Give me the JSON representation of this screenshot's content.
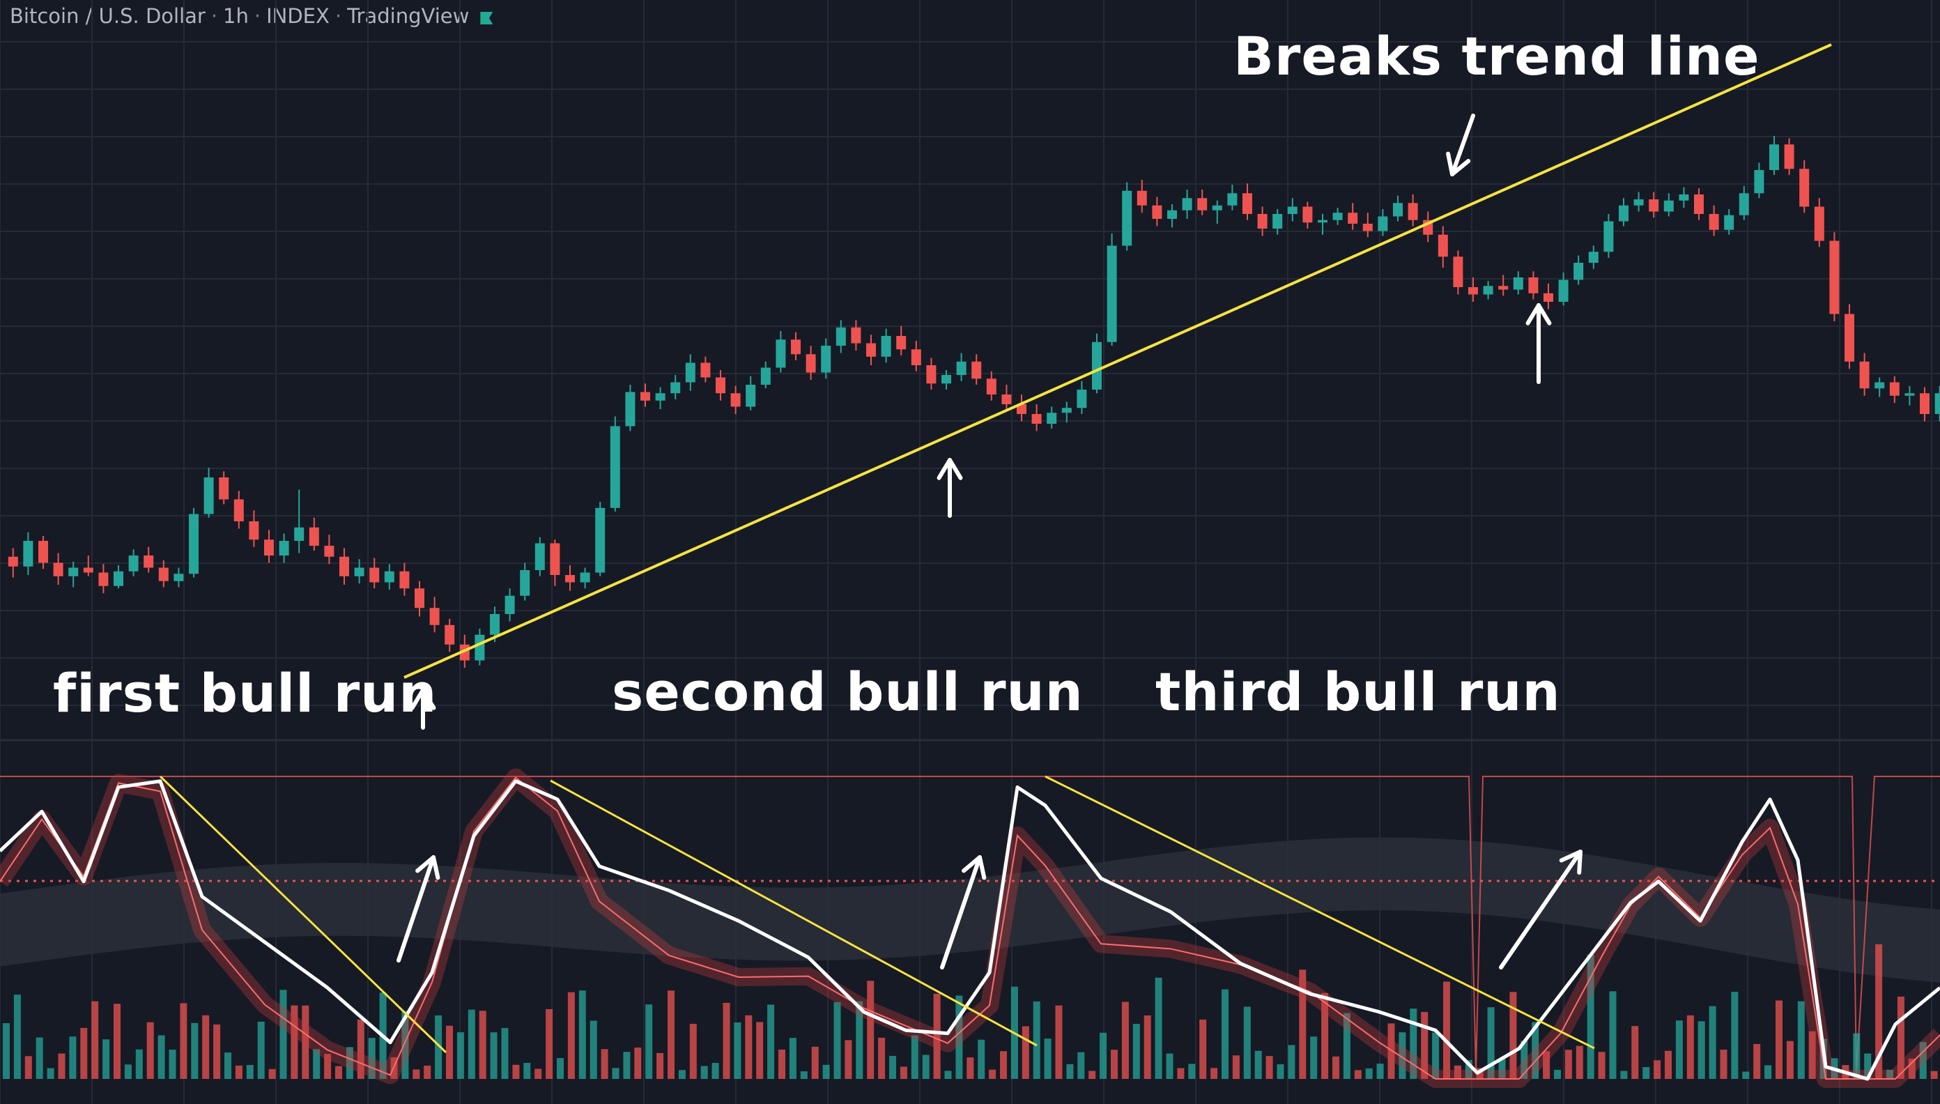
{
  "title_bar": {
    "symbol": "Bitcoin / U.S. Dollar",
    "interval": "1h",
    "exchange": "INDEX",
    "platform": "TradingView"
  },
  "annotations": {
    "breaks_trend_line": "Breaks trend line",
    "first_bull_run": "first bull run",
    "second_bull_run": "second bull run",
    "third_bull_run": "third bull run"
  },
  "colors": {
    "background": "#161a25",
    "grid": "#252a36",
    "up": "#26a69a",
    "down": "#ef5350",
    "trendline": "#f5e342",
    "annotation": "#ffffff",
    "oscillator_line": "#ffffff",
    "signal_band": "#c43b3b"
  },
  "chart_data": [
    {
      "type": "candlestick",
      "note_series": "price",
      "values": [
        [
          0,
          99.5,
          100.2,
          97.8,
          98.7
        ],
        [
          1,
          98.7,
          101.5,
          98.0,
          100.8
        ],
        [
          2,
          100.8,
          101.2,
          98.5,
          99.0
        ],
        [
          3,
          99.0,
          99.8,
          97.2,
          97.9
        ],
        [
          4,
          97.9,
          99.1,
          97.0,
          98.6
        ],
        [
          5,
          98.6,
          99.6,
          97.9,
          98.2
        ],
        [
          6,
          98.2,
          98.9,
          96.5,
          97.1
        ],
        [
          7,
          97.1,
          98.8,
          96.9,
          98.3
        ],
        [
          8,
          98.3,
          100.1,
          97.9,
          99.6
        ],
        [
          9,
          99.6,
          100.3,
          98.2,
          98.6
        ],
        [
          10,
          98.6,
          99.2,
          97.0,
          97.5
        ],
        [
          11,
          97.5,
          98.6,
          97.0,
          98.1
        ],
        [
          12,
          98.1,
          103.5,
          97.8,
          103.0
        ],
        [
          13,
          103.0,
          106.8,
          102.7,
          106.0
        ],
        [
          14,
          106.0,
          106.5,
          103.8,
          104.2
        ],
        [
          15,
          104.2,
          104.9,
          101.8,
          102.4
        ],
        [
          16,
          102.4,
          103.3,
          100.3,
          100.9
        ],
        [
          17,
          100.9,
          101.7,
          99.0,
          99.6
        ],
        [
          18,
          99.6,
          101.4,
          99.0,
          100.8
        ],
        [
          19,
          100.8,
          105.0,
          99.8,
          101.9
        ],
        [
          20,
          101.9,
          102.7,
          100.0,
          100.4
        ],
        [
          21,
          100.4,
          101.3,
          98.9,
          99.5
        ],
        [
          22,
          99.5,
          100.2,
          97.2,
          97.9
        ],
        [
          23,
          97.9,
          99.3,
          97.3,
          98.6
        ],
        [
          24,
          98.6,
          99.4,
          96.9,
          97.4
        ],
        [
          25,
          97.4,
          98.9,
          96.8,
          98.3
        ],
        [
          26,
          98.3,
          99.0,
          96.3,
          96.9
        ],
        [
          27,
          96.9,
          97.5,
          94.6,
          95.3
        ],
        [
          28,
          95.3,
          96.2,
          93.3,
          93.9
        ],
        [
          29,
          93.9,
          94.4,
          91.7,
          92.3
        ],
        [
          30,
          92.3,
          93.1,
          90.4,
          91.0
        ],
        [
          31,
          91.0,
          93.6,
          90.6,
          93.1
        ],
        [
          32,
          93.1,
          95.4,
          92.5,
          94.8
        ],
        [
          33,
          94.8,
          96.9,
          94.2,
          96.3
        ],
        [
          34,
          96.3,
          99.0,
          95.9,
          98.4
        ],
        [
          35,
          98.4,
          101.1,
          97.9,
          100.6
        ],
        [
          36,
          100.6,
          100.9,
          97.1,
          98.0
        ],
        [
          37,
          98.0,
          98.8,
          96.7,
          97.4
        ],
        [
          38,
          97.4,
          98.6,
          96.9,
          98.2
        ],
        [
          39,
          98.2,
          104.0,
          97.9,
          103.5
        ],
        [
          40,
          103.5,
          111.0,
          103.2,
          110.2
        ],
        [
          41,
          110.2,
          113.6,
          109.8,
          113.0
        ],
        [
          42,
          113.0,
          113.7,
          111.8,
          112.3
        ],
        [
          43,
          112.3,
          113.4,
          111.6,
          112.9
        ],
        [
          44,
          112.9,
          114.4,
          112.4,
          113.8
        ],
        [
          45,
          113.8,
          116.1,
          113.1,
          115.4
        ],
        [
          46,
          115.4,
          115.9,
          113.8,
          114.2
        ],
        [
          47,
          114.2,
          114.8,
          112.3,
          112.9
        ],
        [
          48,
          112.9,
          113.5,
          111.2,
          111.8
        ],
        [
          49,
          111.8,
          114.3,
          111.5,
          113.6
        ],
        [
          50,
          113.6,
          115.5,
          113.3,
          115.0
        ],
        [
          51,
          115.0,
          118.0,
          114.6,
          117.3
        ],
        [
          52,
          117.3,
          117.9,
          115.6,
          116.1
        ],
        [
          53,
          116.1,
          116.8,
          114.0,
          114.6
        ],
        [
          54,
          114.6,
          117.4,
          114.1,
          116.8
        ],
        [
          55,
          116.8,
          118.9,
          116.2,
          118.3
        ],
        [
          56,
          118.3,
          118.9,
          116.4,
          117.0
        ],
        [
          57,
          117.0,
          117.7,
          115.2,
          115.9
        ],
        [
          58,
          115.9,
          118.2,
          115.4,
          117.6
        ],
        [
          59,
          117.6,
          118.4,
          116.0,
          116.5
        ],
        [
          60,
          116.5,
          117.2,
          114.7,
          115.2
        ],
        [
          61,
          115.2,
          115.8,
          113.2,
          113.7
        ],
        [
          62,
          113.7,
          114.8,
          113.2,
          114.4
        ],
        [
          63,
          114.4,
          116.2,
          113.9,
          115.5
        ],
        [
          64,
          115.5,
          116.1,
          113.6,
          114.1
        ],
        [
          65,
          114.1,
          114.7,
          112.3,
          112.8
        ],
        [
          66,
          112.8,
          113.6,
          111.5,
          112.0
        ],
        [
          67,
          112.0,
          112.8,
          110.6,
          111.2
        ],
        [
          68,
          111.2,
          112.0,
          109.8,
          110.4
        ],
        [
          69,
          110.4,
          111.8,
          110.0,
          111.3
        ],
        [
          70,
          111.3,
          112.2,
          110.5,
          111.7
        ],
        [
          71,
          111.7,
          113.9,
          111.2,
          113.2
        ],
        [
          72,
          113.2,
          117.8,
          112.9,
          117.1
        ],
        [
          73,
          117.1,
          126.0,
          116.8,
          125.0
        ],
        [
          74,
          125.0,
          130.2,
          124.6,
          129.5
        ],
        [
          75,
          129.5,
          130.4,
          127.7,
          128.3
        ],
        [
          76,
          128.3,
          129.0,
          126.6,
          127.2
        ],
        [
          77,
          127.2,
          128.4,
          126.5,
          127.9
        ],
        [
          78,
          127.9,
          129.6,
          127.2,
          128.9
        ],
        [
          79,
          128.9,
          129.6,
          127.5,
          127.9
        ],
        [
          80,
          127.9,
          128.7,
          126.8,
          128.3
        ],
        [
          81,
          128.3,
          130.0,
          127.9,
          129.3
        ],
        [
          82,
          129.3,
          130.1,
          127.1,
          127.6
        ],
        [
          83,
          127.6,
          128.2,
          125.8,
          126.4
        ],
        [
          84,
          126.4,
          128.0,
          125.9,
          127.6
        ],
        [
          85,
          127.6,
          128.9,
          127.0,
          128.2
        ],
        [
          86,
          128.2,
          128.6,
          126.4,
          126.9
        ],
        [
          87,
          126.9,
          127.6,
          125.9,
          127.1
        ],
        [
          88,
          127.1,
          128.1,
          126.7,
          127.7
        ],
        [
          89,
          127.7,
          128.5,
          126.3,
          126.8
        ],
        [
          90,
          126.8,
          127.7,
          125.7,
          126.2
        ],
        [
          91,
          126.2,
          128.0,
          125.8,
          127.4
        ],
        [
          92,
          127.4,
          129.1,
          127.0,
          128.5
        ],
        [
          93,
          128.5,
          129.2,
          126.6,
          127.1
        ],
        [
          94,
          127.1,
          127.8,
          125.3,
          125.9
        ],
        [
          95,
          125.9,
          126.6,
          123.2,
          124.1
        ],
        [
          96,
          124.1,
          124.6,
          121.0,
          121.6
        ],
        [
          97,
          121.6,
          122.4,
          120.4,
          121.0
        ],
        [
          98,
          121.0,
          122.1,
          120.6,
          121.7
        ],
        [
          99,
          121.7,
          122.6,
          120.9,
          121.4
        ],
        [
          100,
          121.4,
          122.9,
          121.0,
          122.4
        ],
        [
          101,
          122.4,
          122.9,
          120.6,
          121.1
        ],
        [
          102,
          121.1,
          121.9,
          119.8,
          120.4
        ],
        [
          103,
          120.4,
          122.8,
          120.1,
          122.2
        ],
        [
          104,
          122.2,
          124.2,
          121.8,
          123.6
        ],
        [
          105,
          123.6,
          125.0,
          123.1,
          124.5
        ],
        [
          106,
          124.5,
          127.6,
          124.0,
          127.0
        ],
        [
          107,
          127.0,
          128.9,
          126.6,
          128.3
        ],
        [
          108,
          128.3,
          129.4,
          127.8,
          128.8
        ],
        [
          109,
          128.8,
          129.4,
          127.3,
          127.8
        ],
        [
          110,
          127.8,
          129.3,
          127.4,
          128.7
        ],
        [
          111,
          128.7,
          129.8,
          128.1,
          129.2
        ],
        [
          112,
          129.2,
          129.7,
          127.1,
          127.6
        ],
        [
          113,
          127.6,
          128.3,
          125.8,
          126.3
        ],
        [
          114,
          126.3,
          128.0,
          125.9,
          127.5
        ],
        [
          115,
          127.5,
          129.9,
          127.1,
          129.3
        ],
        [
          116,
          129.3,
          131.8,
          128.9,
          131.2
        ],
        [
          117,
          131.2,
          134.0,
          130.8,
          133.3
        ],
        [
          118,
          133.3,
          133.8,
          130.8,
          131.3
        ],
        [
          119,
          131.3,
          132.0,
          127.7,
          128.2
        ],
        [
          120,
          128.2,
          128.9,
          124.9,
          125.4
        ],
        [
          121,
          125.4,
          126.1,
          118.8,
          119.4
        ],
        [
          122,
          119.4,
          120.2,
          114.9,
          115.5
        ],
        [
          123,
          115.5,
          116.2,
          112.7,
          113.3
        ],
        [
          124,
          113.3,
          114.2,
          112.6,
          113.8
        ],
        [
          125,
          113.8,
          114.3,
          112.1,
          112.7
        ],
        [
          126,
          112.7,
          113.5,
          111.9,
          112.9
        ],
        [
          127,
          112.9,
          113.4,
          110.6,
          111.2
        ],
        [
          128,
          111.2,
          113.5,
          110.6,
          112.9
        ]
      ]
    },
    {
      "type": "line",
      "series": [
        {
          "values": [
            [
              0,
              100
            ],
            [
              12,
              104
            ],
            [
              25,
              100
            ],
            [
              35,
              96
            ],
            [
              41,
              116
            ],
            [
              52,
              113
            ],
            [
              60,
              116
            ],
            [
              66,
              112
            ],
            [
              72,
              122
            ],
            [
              78,
              124
            ],
            [
              84,
              125
            ],
            [
              90,
              120
            ],
            [
              98,
              122
            ],
            [
              104,
              127
            ],
            [
              112,
              124
            ],
            [
              119,
              133
            ],
            [
              123,
              116
            ],
            [
              128,
              112
            ]
          ]
        },
        {
          "values": [
            [
              0,
              98
            ],
            [
              10,
              99
            ],
            [
              22,
              101
            ],
            [
              32,
              99
            ],
            [
              44,
              103
            ],
            [
              56,
              104
            ],
            [
              66,
              102
            ],
            [
              76,
              104
            ],
            [
              88,
              102
            ],
            [
              100,
              100
            ],
            [
              112,
              101
            ],
            [
              122,
              97
            ],
            [
              128,
              95
            ]
          ]
        }
      ]
    }
  ]
}
